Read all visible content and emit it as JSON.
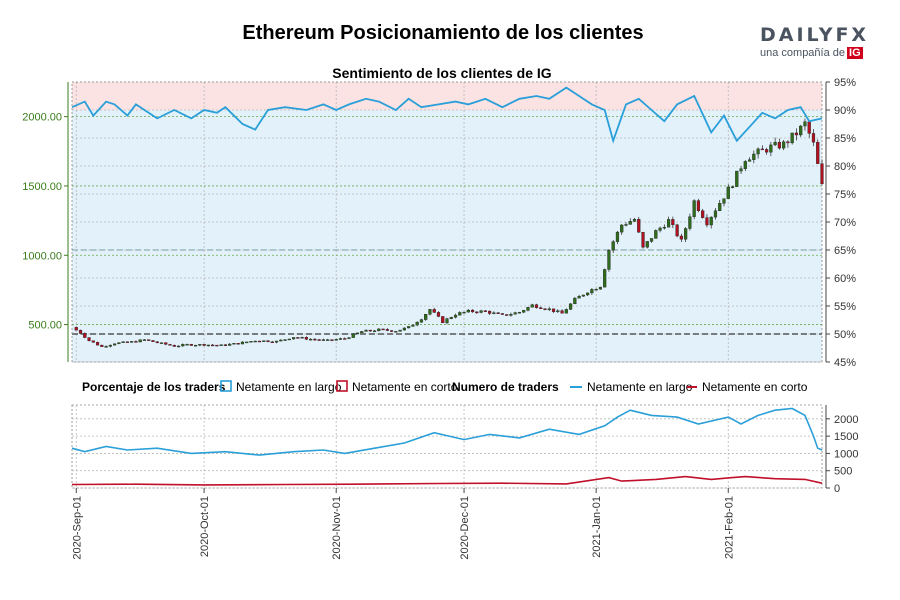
{
  "header": {
    "title": "Ethereum Posicionamiento de los clientes",
    "subtitle": "Sentimiento de los clientes de IG",
    "logo_text": "DAILYFX",
    "logo_sub": "una compañía de",
    "logo_ig": "IG"
  },
  "colors": {
    "long": "#2a9fd8",
    "short": "#c0102a",
    "candle_up": "#2e6b1a",
    "candle_down": "#b01020",
    "zone_long": "#e3f1fb",
    "zone_short": "#fbe3e3",
    "left_axis": "#3a7d1e"
  },
  "chart_data": [
    {
      "type": "candlestick",
      "title": "Sentimiento de los clientes de IG",
      "x_ticks": [
        "2020-Sep-01",
        "2020-Oct-01",
        "2020-Nov-01",
        "2020-Dec-01",
        "2021-Jan-01",
        "2021-Feb-01"
      ],
      "x_range": [
        "2020-08-31",
        "2021-02-23"
      ],
      "price_axis": {
        "ticks": [
          "500.00",
          "1000.00",
          "1500.00",
          "2000.00"
        ],
        "ylim": [
          230,
          2250
        ]
      },
      "percent_axis": {
        "ticks": [
          "45%",
          "50%",
          "55%",
          "60%",
          "65%",
          "70%",
          "75%",
          "80%",
          "85%",
          "90%",
          "95%"
        ],
        "ylim": [
          45,
          95
        ]
      },
      "reference_lines_percent": [
        50,
        65,
        90
      ],
      "price_close": [
        {
          "date": "2020-08-31",
          "close": 480
        },
        {
          "date": "2020-09-02",
          "close": 440
        },
        {
          "date": "2020-09-04",
          "close": 385
        },
        {
          "date": "2020-09-07",
          "close": 340
        },
        {
          "date": "2020-09-10",
          "close": 365
        },
        {
          "date": "2020-09-14",
          "close": 375
        },
        {
          "date": "2020-09-17",
          "close": 390
        },
        {
          "date": "2020-09-20",
          "close": 370
        },
        {
          "date": "2020-09-24",
          "close": 345
        },
        {
          "date": "2020-09-27",
          "close": 355
        },
        {
          "date": "2020-10-01",
          "close": 355
        },
        {
          "date": "2020-10-05",
          "close": 350
        },
        {
          "date": "2020-10-09",
          "close": 365
        },
        {
          "date": "2020-10-13",
          "close": 385
        },
        {
          "date": "2020-10-18",
          "close": 378
        },
        {
          "date": "2020-10-22",
          "close": 410
        },
        {
          "date": "2020-10-26",
          "close": 395
        },
        {
          "date": "2020-10-30",
          "close": 385
        },
        {
          "date": "2020-11-03",
          "close": 400
        },
        {
          "date": "2020-11-07",
          "close": 450
        },
        {
          "date": "2020-11-11",
          "close": 462
        },
        {
          "date": "2020-11-15",
          "close": 455
        },
        {
          "date": "2020-11-18",
          "close": 480
        },
        {
          "date": "2020-11-21",
          "close": 545
        },
        {
          "date": "2020-11-23",
          "close": 610
        },
        {
          "date": "2020-11-26",
          "close": 520
        },
        {
          "date": "2020-11-29",
          "close": 575
        },
        {
          "date": "2020-12-02",
          "close": 595
        },
        {
          "date": "2020-12-06",
          "close": 595
        },
        {
          "date": "2020-12-10",
          "close": 565
        },
        {
          "date": "2020-12-14",
          "close": 590
        },
        {
          "date": "2020-12-17",
          "close": 640
        },
        {
          "date": "2020-12-21",
          "close": 610
        },
        {
          "date": "2020-12-24",
          "close": 580
        },
        {
          "date": "2020-12-27",
          "close": 680
        },
        {
          "date": "2020-12-30",
          "close": 740
        },
        {
          "date": "2021-01-02",
          "close": 780
        },
        {
          "date": "2021-01-04",
          "close": 1040
        },
        {
          "date": "2021-01-07",
          "close": 1220
        },
        {
          "date": "2021-01-10",
          "close": 1260
        },
        {
          "date": "2021-01-12",
          "close": 1050
        },
        {
          "date": "2021-01-15",
          "close": 1170
        },
        {
          "date": "2021-01-18",
          "close": 1250
        },
        {
          "date": "2021-01-21",
          "close": 1100
        },
        {
          "date": "2021-01-24",
          "close": 1390
        },
        {
          "date": "2021-01-27",
          "close": 1240
        },
        {
          "date": "2021-01-30",
          "close": 1380
        },
        {
          "date": "2021-02-02",
          "close": 1520
        },
        {
          "date": "2021-02-05",
          "close": 1700
        },
        {
          "date": "2021-02-08",
          "close": 1740
        },
        {
          "date": "2021-02-11",
          "close": 1780
        },
        {
          "date": "2021-02-14",
          "close": 1800
        },
        {
          "date": "2021-02-17",
          "close": 1880
        },
        {
          "date": "2021-02-19",
          "close": 1950
        },
        {
          "date": "2021-02-21",
          "close": 1800
        },
        {
          "date": "2021-02-22",
          "close": 1650
        },
        {
          "date": "2021-02-23",
          "close": 1500
        }
      ],
      "net_long_percent": [
        {
          "date": "2020-08-31",
          "pct": 90.5
        },
        {
          "date": "2020-09-03",
          "pct": 91.5
        },
        {
          "date": "2020-09-05",
          "pct": 89
        },
        {
          "date": "2020-09-08",
          "pct": 91.5
        },
        {
          "date": "2020-09-10",
          "pct": 91
        },
        {
          "date": "2020-09-13",
          "pct": 89
        },
        {
          "date": "2020-09-15",
          "pct": 91
        },
        {
          "date": "2020-09-20",
          "pct": 88.5
        },
        {
          "date": "2020-09-24",
          "pct": 90
        },
        {
          "date": "2020-09-28",
          "pct": 88.5
        },
        {
          "date": "2020-10-01",
          "pct": 90
        },
        {
          "date": "2020-10-04",
          "pct": 89.5
        },
        {
          "date": "2020-10-06",
          "pct": 90.5
        },
        {
          "date": "2020-10-10",
          "pct": 87.5
        },
        {
          "date": "2020-10-13",
          "pct": 86.5
        },
        {
          "date": "2020-10-16",
          "pct": 90
        },
        {
          "date": "2020-10-20",
          "pct": 90.5
        },
        {
          "date": "2020-10-25",
          "pct": 90
        },
        {
          "date": "2020-10-29",
          "pct": 91
        },
        {
          "date": "2020-11-01",
          "pct": 90
        },
        {
          "date": "2020-11-04",
          "pct": 91
        },
        {
          "date": "2020-11-08",
          "pct": 92
        },
        {
          "date": "2020-11-11",
          "pct": 91.5
        },
        {
          "date": "2020-11-15",
          "pct": 90
        },
        {
          "date": "2020-11-18",
          "pct": 92
        },
        {
          "date": "2020-11-21",
          "pct": 90.5
        },
        {
          "date": "2020-11-25",
          "pct": 91
        },
        {
          "date": "2020-11-29",
          "pct": 91.5
        },
        {
          "date": "2020-12-02",
          "pct": 91
        },
        {
          "date": "2020-12-06",
          "pct": 92
        },
        {
          "date": "2020-12-10",
          "pct": 90.5
        },
        {
          "date": "2020-12-14",
          "pct": 92
        },
        {
          "date": "2020-12-18",
          "pct": 92.5
        },
        {
          "date": "2020-12-21",
          "pct": 92
        },
        {
          "date": "2020-12-25",
          "pct": 94
        },
        {
          "date": "2020-12-28",
          "pct": 92.5
        },
        {
          "date": "2020-12-31",
          "pct": 91
        },
        {
          "date": "2021-01-03",
          "pct": 90
        },
        {
          "date": "2021-01-05",
          "pct": 84.5
        },
        {
          "date": "2021-01-08",
          "pct": 91
        },
        {
          "date": "2021-01-11",
          "pct": 92
        },
        {
          "date": "2021-01-14",
          "pct": 90
        },
        {
          "date": "2021-01-17",
          "pct": 88
        },
        {
          "date": "2021-01-20",
          "pct": 91
        },
        {
          "date": "2021-01-24",
          "pct": 92.5
        },
        {
          "date": "2021-01-28",
          "pct": 86
        },
        {
          "date": "2021-01-31",
          "pct": 89
        },
        {
          "date": "2021-02-03",
          "pct": 84.5
        },
        {
          "date": "2021-02-06",
          "pct": 87
        },
        {
          "date": "2021-02-09",
          "pct": 89.5
        },
        {
          "date": "2021-02-12",
          "pct": 88.5
        },
        {
          "date": "2021-02-15",
          "pct": 90
        },
        {
          "date": "2021-02-18",
          "pct": 90.5
        },
        {
          "date": "2021-02-20",
          "pct": 88
        },
        {
          "date": "2021-02-23",
          "pct": 88.5
        }
      ]
    },
    {
      "type": "line",
      "legend": {
        "section_pct": "Porcentaje de los traders",
        "pct_long": "Netamente en largo",
        "pct_short": "Netamente en corto",
        "section_count": "Numero de traders",
        "count_long": "Netamente en largo",
        "count_short": "Netamente en corto"
      },
      "y_axis": {
        "ticks": [
          "0",
          "500",
          "1000",
          "1500",
          "2000"
        ],
        "ylim": [
          0,
          2400
        ]
      },
      "series": [
        {
          "name": "Netamente en largo",
          "points": [
            {
              "date": "2020-08-31",
              "value": 1150
            },
            {
              "date": "2020-09-03",
              "value": 1050
            },
            {
              "date": "2020-09-08",
              "value": 1200
            },
            {
              "date": "2020-09-13",
              "value": 1100
            },
            {
              "date": "2020-09-20",
              "value": 1150
            },
            {
              "date": "2020-09-28",
              "value": 1000
            },
            {
              "date": "2020-10-06",
              "value": 1050
            },
            {
              "date": "2020-10-14",
              "value": 950
            },
            {
              "date": "2020-10-22",
              "value": 1050
            },
            {
              "date": "2020-10-29",
              "value": 1100
            },
            {
              "date": "2020-11-03",
              "value": 1000
            },
            {
              "date": "2020-11-10",
              "value": 1150
            },
            {
              "date": "2020-11-17",
              "value": 1300
            },
            {
              "date": "2020-11-24",
              "value": 1600
            },
            {
              "date": "2020-12-01",
              "value": 1400
            },
            {
              "date": "2020-12-07",
              "value": 1550
            },
            {
              "date": "2020-12-14",
              "value": 1450
            },
            {
              "date": "2020-12-21",
              "value": 1700
            },
            {
              "date": "2020-12-28",
              "value": 1550
            },
            {
              "date": "2021-01-03",
              "value": 1800
            },
            {
              "date": "2021-01-06",
              "value": 2050
            },
            {
              "date": "2021-01-09",
              "value": 2250
            },
            {
              "date": "2021-01-14",
              "value": 2100
            },
            {
              "date": "2021-01-20",
              "value": 2050
            },
            {
              "date": "2021-01-25",
              "value": 1850
            },
            {
              "date": "2021-02-01",
              "value": 2050
            },
            {
              "date": "2021-02-04",
              "value": 1850
            },
            {
              "date": "2021-02-08",
              "value": 2100
            },
            {
              "date": "2021-02-12",
              "value": 2250
            },
            {
              "date": "2021-02-16",
              "value": 2300
            },
            {
              "date": "2021-02-19",
              "value": 2100
            },
            {
              "date": "2021-02-21",
              "value": 1500
            },
            {
              "date": "2021-02-22",
              "value": 1150
            },
            {
              "date": "2021-02-23",
              "value": 1100
            }
          ]
        },
        {
          "name": "Netamente en corto",
          "points": [
            {
              "date": "2020-08-31",
              "value": 100
            },
            {
              "date": "2020-09-15",
              "value": 110
            },
            {
              "date": "2020-10-01",
              "value": 90
            },
            {
              "date": "2020-10-20",
              "value": 100
            },
            {
              "date": "2020-11-05",
              "value": 110
            },
            {
              "date": "2020-11-25",
              "value": 130
            },
            {
              "date": "2020-12-10",
              "value": 140
            },
            {
              "date": "2020-12-25",
              "value": 120
            },
            {
              "date": "2021-01-04",
              "value": 300
            },
            {
              "date": "2021-01-07",
              "value": 200
            },
            {
              "date": "2021-01-15",
              "value": 250
            },
            {
              "date": "2021-01-22",
              "value": 330
            },
            {
              "date": "2021-01-28",
              "value": 250
            },
            {
              "date": "2021-02-02",
              "value": 300
            },
            {
              "date": "2021-02-05",
              "value": 330
            },
            {
              "date": "2021-02-12",
              "value": 270
            },
            {
              "date": "2021-02-19",
              "value": 250
            },
            {
              "date": "2021-02-23",
              "value": 140
            }
          ]
        }
      ]
    }
  ]
}
